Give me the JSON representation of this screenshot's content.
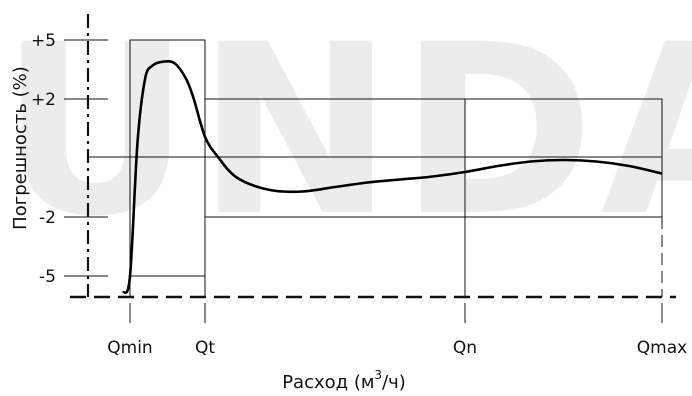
{
  "watermark": "UNDA",
  "chart_data": {
    "type": "line",
    "xlabel": "Расход (м/ч)",
    "xlabel_superscript": "3",
    "ylabel": "Погрешность (%)",
    "x_ticks": [
      "Qmin",
      "Qt",
      "Qn",
      "Qmax"
    ],
    "x_tick_values": [
      0,
      1,
      5,
      8
    ],
    "y_ticks": [
      "+5",
      "+2",
      "-2",
      "-5"
    ],
    "y_tick_values": [
      5,
      2,
      -2,
      -5
    ],
    "xlim": [
      -0.6,
      8.2
    ],
    "ylim": [
      -6,
      7
    ],
    "grid": false,
    "error_limits": [
      {
        "from": "Qmin",
        "to": "Qt",
        "upper": 5,
        "lower": -5
      },
      {
        "from": "Qt",
        "to": "Qmax",
        "upper": 2,
        "lower": -2
      }
    ],
    "series": [
      {
        "x": [
          -0.1,
          0.0,
          0.1,
          0.2,
          0.3,
          0.45,
          0.6,
          0.75,
          0.85,
          1.0,
          1.2,
          1.5,
          2.0,
          2.5,
          3.0,
          3.5,
          4.0,
          4.5,
          5.0,
          5.5,
          6.0,
          6.5,
          7.0,
          7.5,
          8.0
        ],
        "y": [
          -5.8,
          -5.0,
          0.5,
          3.0,
          3.7,
          3.9,
          3.8,
          3.0,
          2.0,
          0.7,
          0.0,
          -0.7,
          -1.1,
          -1.15,
          -1.0,
          -0.85,
          -0.75,
          -0.65,
          -0.5,
          -0.3,
          -0.15,
          -0.1,
          -0.15,
          -0.3,
          -0.55
        ]
      }
    ]
  }
}
